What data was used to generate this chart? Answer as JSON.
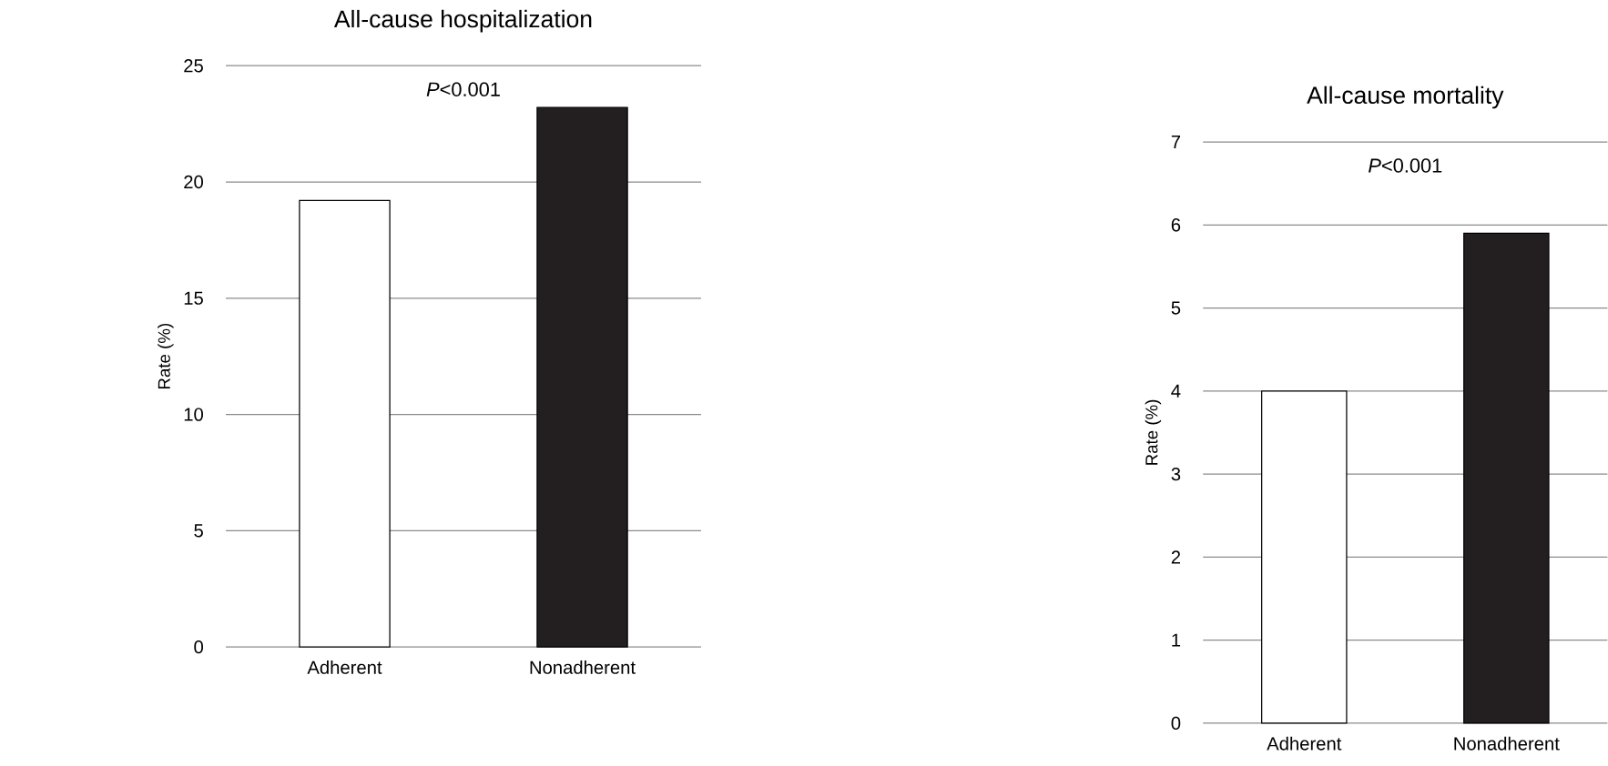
{
  "chart_data": [
    {
      "type": "bar",
      "title": "All-cause hospitalization",
      "ylabel": "Rate (%)",
      "categories": [
        "Adherent",
        "Nonadherent"
      ],
      "values": [
        19.2,
        23.2
      ],
      "colors": [
        "#ffffff",
        "#231f20"
      ],
      "ylim": [
        0,
        25
      ],
      "yticks": [
        0,
        5,
        10,
        15,
        20,
        25
      ],
      "grid": "y",
      "annotations": [
        "*P*<0.001"
      ]
    },
    {
      "type": "bar",
      "title": "All-cause mortality",
      "ylabel": "Rate (%)",
      "categories": [
        "Adherent",
        "Nonadherent"
      ],
      "values": [
        4.0,
        5.9
      ],
      "colors": [
        "#ffffff",
        "#231f20"
      ],
      "ylim": [
        0,
        7
      ],
      "yticks": [
        0,
        1,
        2,
        3,
        4,
        5,
        6,
        7
      ],
      "grid": "y",
      "annotations": [
        "*P*<0.001"
      ]
    }
  ]
}
